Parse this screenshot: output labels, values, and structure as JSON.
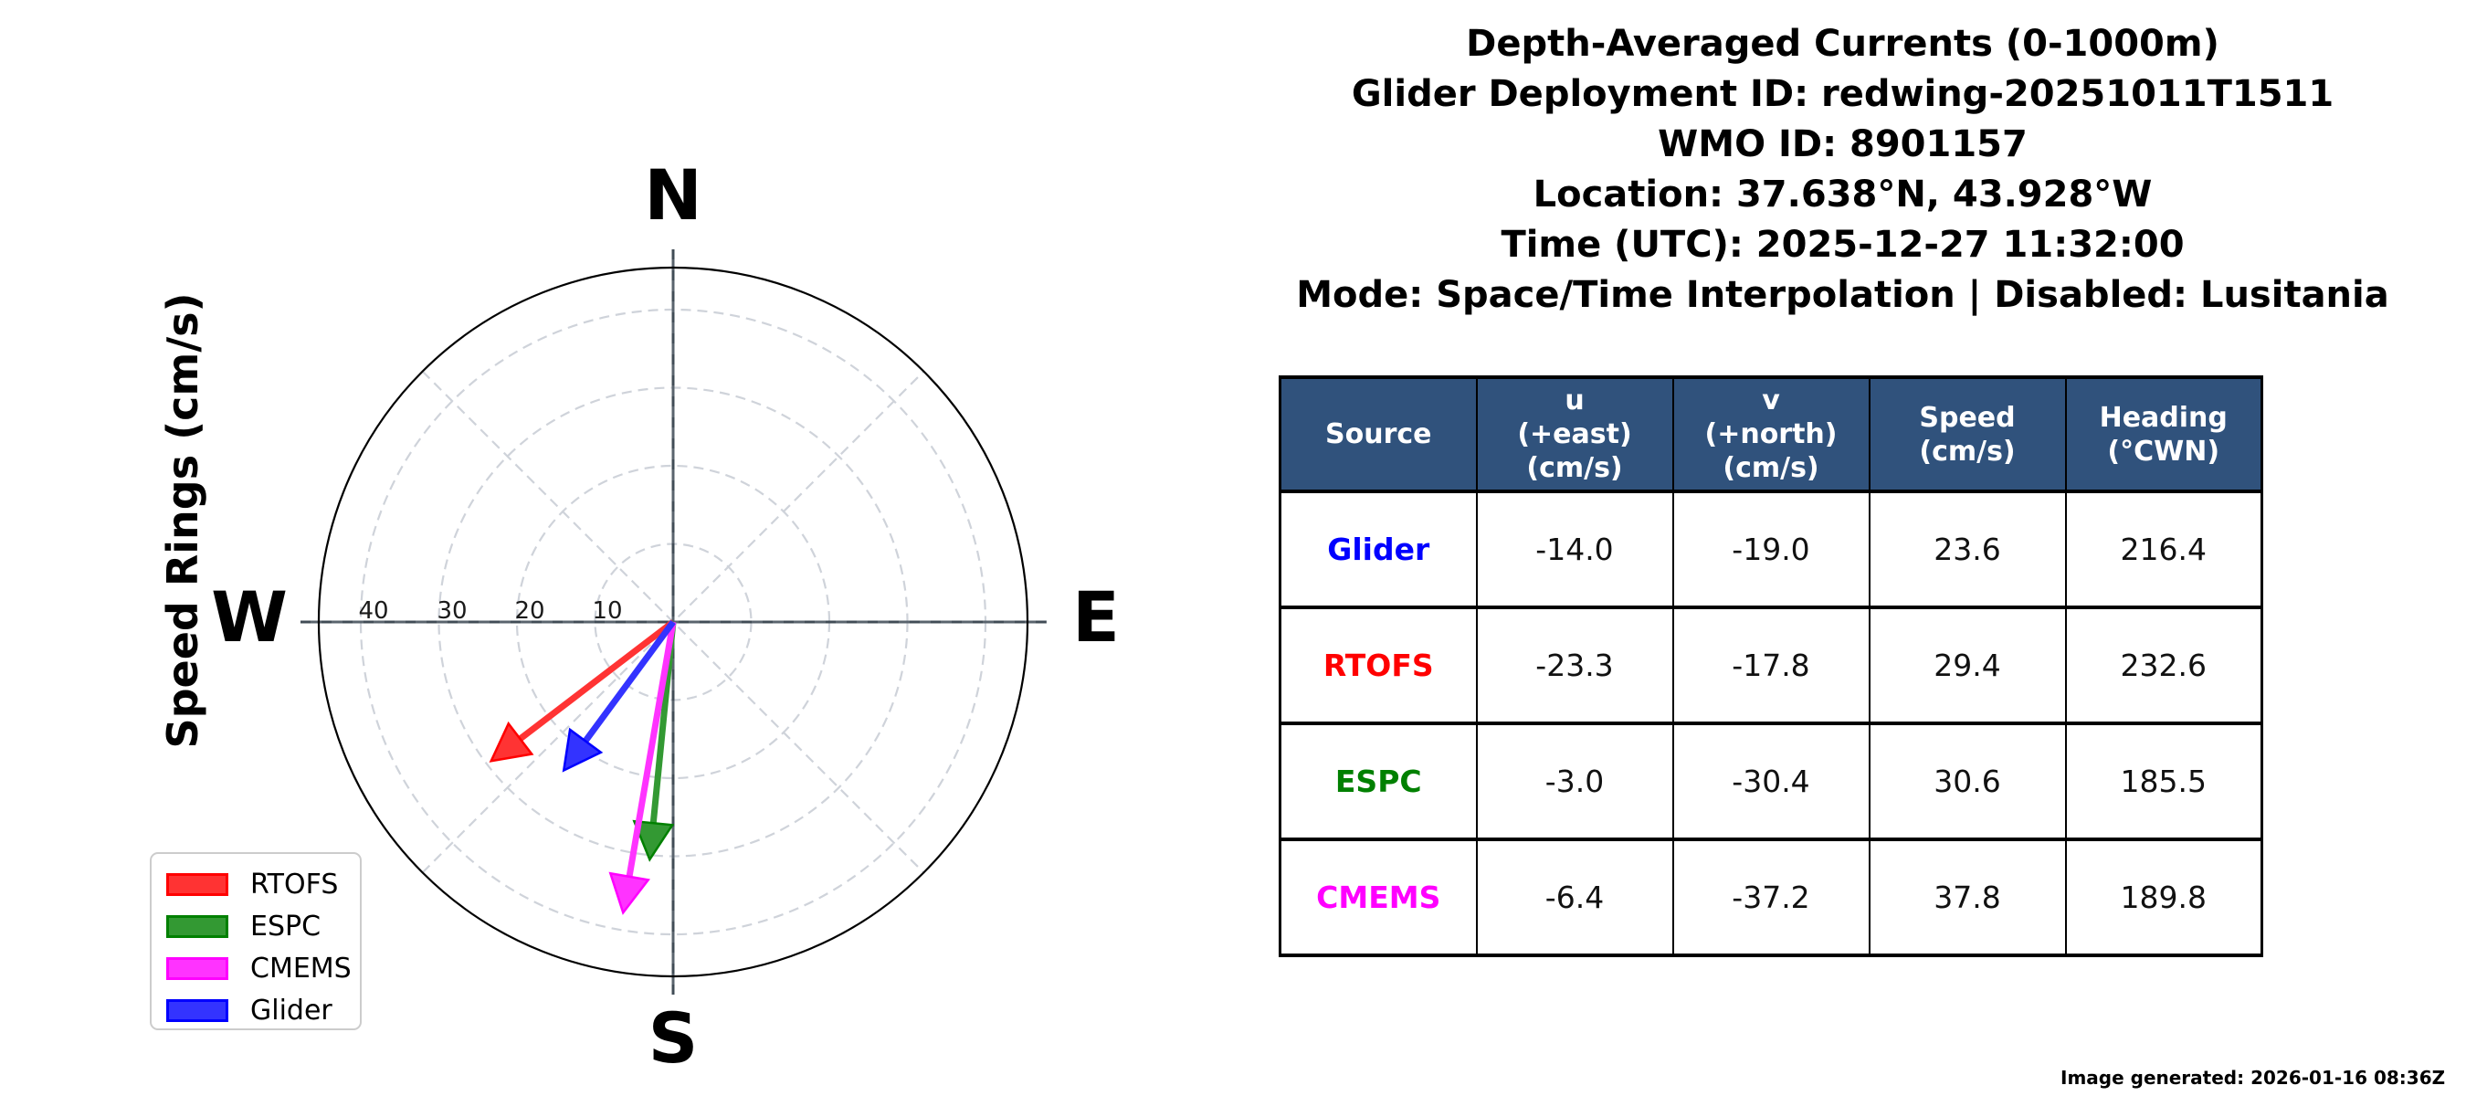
{
  "title": {
    "lines": [
      "Depth-Averaged Currents (0-1000m)",
      "Glider Deployment ID: redwing-20251011T1511",
      "WMO ID: 8901157",
      "Location: 37.638°N, 43.928°W",
      "Time (UTC): 2025-12-27 11:32:00",
      "Mode: Space/Time Interpolation | Disabled: Lusitania"
    ]
  },
  "polar": {
    "axis_label": "Speed Rings (cm/s)",
    "cardinal_n": "N",
    "cardinal_e": "E",
    "cardinal_s": "S",
    "cardinal_w": "W",
    "ring_labels": [
      "40",
      "30",
      "20",
      "10"
    ]
  },
  "legend": {
    "items": [
      {
        "label": "RTOFS",
        "color": "#ff0000",
        "fill": "#ff3333"
      },
      {
        "label": "ESPC",
        "color": "#008000",
        "fill": "#339933"
      },
      {
        "label": "CMEMS",
        "color": "#ff00ff",
        "fill": "#ff33ff"
      },
      {
        "label": "Glider",
        "color": "#0000ff",
        "fill": "#3333ff"
      }
    ]
  },
  "chart_data": {
    "type": "scatter",
    "subtype": "polar-vector-compass-quiver",
    "title": "Depth-Averaged Currents (0-1000m)",
    "r_axis_label": "Speed Rings (cm/s)",
    "r_ticks_cm_s": [
      10,
      20,
      30,
      40
    ],
    "r_max_cm_s": 45.36,
    "theta_gridlines_deg": [
      0,
      45,
      90,
      135,
      180,
      225,
      270,
      315
    ],
    "grid": "dashed rings and diagonals, solid N-S / E-W axes",
    "legend_position": "lower left",
    "vectors": [
      {
        "name": "RTOFS",
        "u_cm_s": -23.3,
        "v_cm_s": -17.8,
        "speed_cm_s": 29.4,
        "heading_deg_cwn": 232.6,
        "color": "#ff0000",
        "fill": "#ff3333"
      },
      {
        "name": "ESPC",
        "u_cm_s": -3.0,
        "v_cm_s": -30.4,
        "speed_cm_s": 30.6,
        "heading_deg_cwn": 185.5,
        "color": "#008000",
        "fill": "#339933"
      },
      {
        "name": "CMEMS",
        "u_cm_s": -6.4,
        "v_cm_s": -37.2,
        "speed_cm_s": 37.8,
        "heading_deg_cwn": 189.8,
        "color": "#ff00ff",
        "fill": "#ff33ff"
      },
      {
        "name": "Glider",
        "u_cm_s": -14.0,
        "v_cm_s": -19.0,
        "speed_cm_s": 23.6,
        "heading_deg_cwn": 216.4,
        "color": "#0000ff",
        "fill": "#3333ff"
      }
    ]
  },
  "table": {
    "header_bg": "#30527c",
    "headers": [
      "Source",
      "u\n(+east)\n(cm/s)",
      "v\n(+north)\n(cm/s)",
      "Speed\n(cm/s)",
      "Heading\n(°CWN)"
    ],
    "rows": [
      {
        "source": "Glider",
        "color": "#0000ff",
        "u": "-14.0",
        "v": "-19.0",
        "speed": "23.6",
        "heading": "216.4"
      },
      {
        "source": "RTOFS",
        "color": "#ff0000",
        "u": "-23.3",
        "v": "-17.8",
        "speed": "29.4",
        "heading": "232.6"
      },
      {
        "source": "ESPC",
        "color": "#008000",
        "u": "-3.0",
        "v": "-30.4",
        "speed": "30.6",
        "heading": "185.5"
      },
      {
        "source": "CMEMS",
        "color": "#ff00ff",
        "u": "-6.4",
        "v": "-37.2",
        "speed": "37.8",
        "heading": "189.8"
      }
    ]
  },
  "footer": {
    "text": "Image generated: 2026-01-16 08:36Z"
  }
}
